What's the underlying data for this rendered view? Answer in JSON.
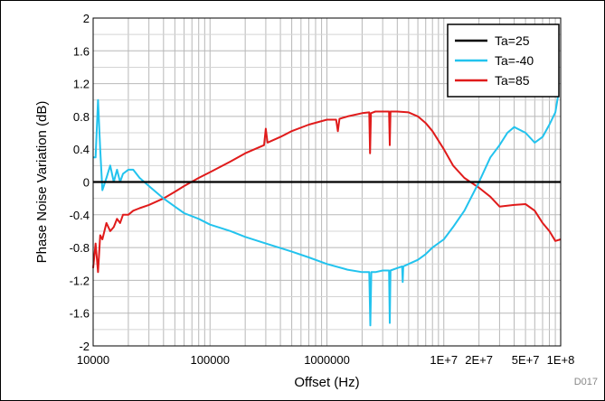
{
  "chart_data": {
    "type": "line",
    "title": "",
    "xlabel": "Offset (Hz)",
    "ylabel": "Phase Noise Variation (dB)",
    "x_scale": "log",
    "xlim": [
      10000,
      100000000
    ],
    "ylim": [
      -2,
      2
    ],
    "grid": true,
    "legend_position": "top-right",
    "x_tick_labels": [
      "10000",
      "100000",
      "1000000",
      "1E+7",
      "2E+7",
      "5E+7",
      "1E+8"
    ],
    "x_tick_values": [
      10000,
      100000,
      1000000,
      10000000,
      20000000,
      50000000,
      100000000
    ],
    "y_ticks": [
      -2,
      -1.6,
      -1.2,
      -0.8,
      -0.4,
      0,
      0.4,
      0.8,
      1.2,
      1.6,
      2
    ],
    "y_tick_labels": [
      "-2",
      "-1.6",
      "-1.2",
      "-0.8",
      "-0.4",
      "0",
      "0.4",
      "0.8",
      "1.2",
      "1.6",
      "2"
    ],
    "code": "D017",
    "series": [
      {
        "name": "Ta=25",
        "color": "#000000",
        "x": [
          10000,
          100000000
        ],
        "y": [
          0,
          0
        ]
      },
      {
        "name": "Ta=-40",
        "color": "#22c3ee",
        "x": [
          10000,
          10500,
          11000,
          11500,
          12000,
          13000,
          14000,
          15000,
          16000,
          17000,
          18000,
          20000,
          22000,
          25000,
          30000,
          40000,
          50000,
          60000,
          80000,
          100000,
          150000,
          200000,
          300000,
          500000,
          700000,
          1000000,
          1500000,
          2000000,
          2300000,
          2350000,
          2400000,
          2600000,
          3000000,
          3400000,
          3450000,
          3500000,
          4000000,
          4400000,
          4450000,
          4500000,
          5000000,
          6000000,
          7000000,
          8000000,
          10000000,
          12000000,
          15000000,
          20000000,
          25000000,
          30000000,
          35000000,
          40000000,
          50000000,
          60000000,
          70000000,
          80000000,
          90000000,
          95000000
        ],
        "y": [
          0.3,
          0.3,
          1.0,
          0.4,
          -0.1,
          0.05,
          0.2,
          0.0,
          0.15,
          0.0,
          0.1,
          0.15,
          0.15,
          0.05,
          -0.05,
          -0.2,
          -0.3,
          -0.38,
          -0.45,
          -0.52,
          -0.6,
          -0.67,
          -0.75,
          -0.85,
          -0.92,
          -1.0,
          -1.07,
          -1.1,
          -1.1,
          -1.75,
          -1.1,
          -1.1,
          -1.08,
          -1.08,
          -1.72,
          -1.08,
          -1.05,
          -1.03,
          -1.22,
          -1.03,
          -1.0,
          -0.95,
          -0.88,
          -0.8,
          -0.7,
          -0.55,
          -0.35,
          0.0,
          0.3,
          0.45,
          0.6,
          0.67,
          0.6,
          0.48,
          0.55,
          0.7,
          0.85,
          1.05
        ]
      },
      {
        "name": "Ta=85",
        "color": "#e01b1b",
        "x": [
          10000,
          10500,
          11000,
          11500,
          12000,
          13000,
          14000,
          15000,
          16000,
          17000,
          18000,
          20000,
          22000,
          25000,
          30000,
          40000,
          50000,
          60000,
          80000,
          100000,
          150000,
          200000,
          290000,
          300000,
          310000,
          400000,
          500000,
          700000,
          1000000,
          1200000,
          1240000,
          1280000,
          1500000,
          2000000,
          2300000,
          2340000,
          2380000,
          2600000,
          3000000,
          3400000,
          3450000,
          3500000,
          4000000,
          5000000,
          6000000,
          7000000,
          8000000,
          10000000,
          12000000,
          15000000,
          20000000,
          25000000,
          30000000,
          40000000,
          50000000,
          60000000,
          70000000,
          80000000,
          90000000,
          100000000
        ],
        "y": [
          -1.05,
          -0.75,
          -1.1,
          -0.65,
          -0.7,
          -0.5,
          -0.6,
          -0.55,
          -0.45,
          -0.5,
          -0.4,
          -0.4,
          -0.35,
          -0.32,
          -0.28,
          -0.2,
          -0.12,
          -0.05,
          0.05,
          0.12,
          0.25,
          0.35,
          0.45,
          0.65,
          0.48,
          0.55,
          0.62,
          0.7,
          0.76,
          0.76,
          0.62,
          0.77,
          0.8,
          0.84,
          0.85,
          0.35,
          0.84,
          0.86,
          0.86,
          0.86,
          0.45,
          0.86,
          0.86,
          0.85,
          0.8,
          0.72,
          0.62,
          0.4,
          0.2,
          0.05,
          -0.07,
          -0.18,
          -0.3,
          -0.28,
          -0.27,
          -0.35,
          -0.5,
          -0.6,
          -0.72,
          -0.7
        ]
      }
    ]
  }
}
